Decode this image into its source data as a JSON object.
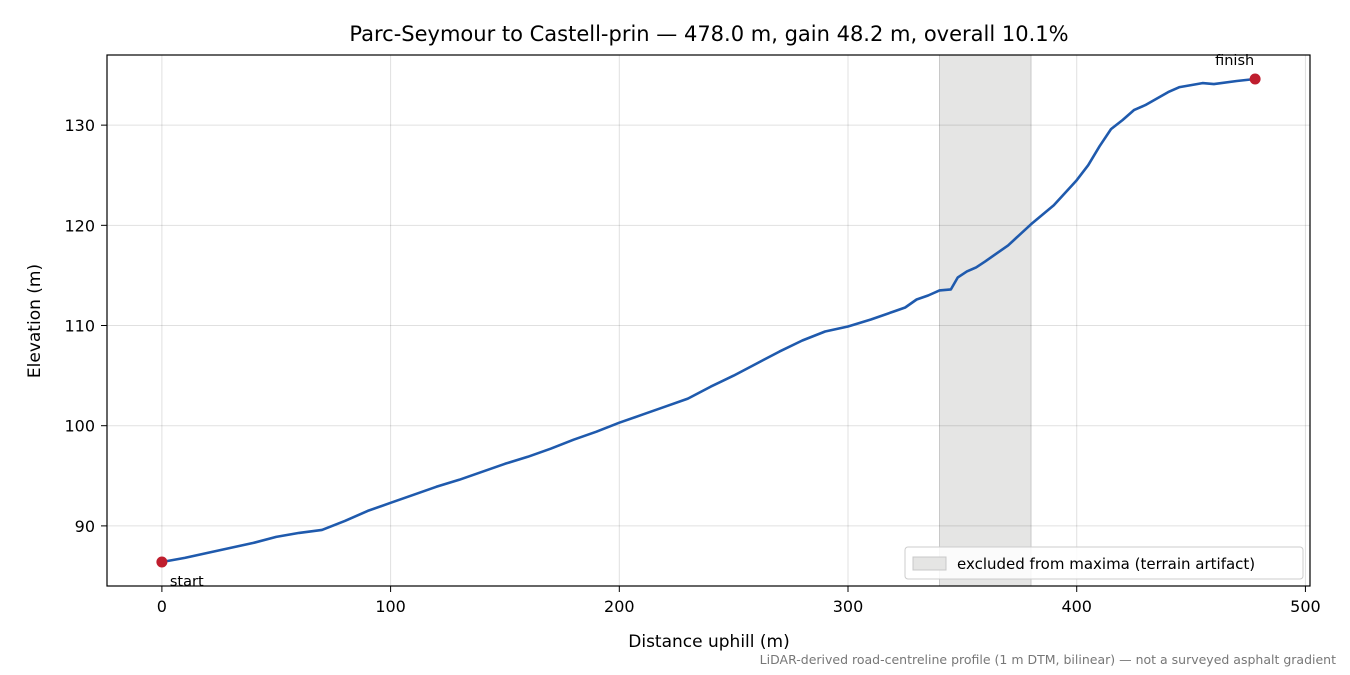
{
  "chart_data": {
    "type": "line",
    "title": "Parc-Seymour to Castell-prin — 478.0 m, gain 48.2 m, overall 10.1%",
    "xlabel": "Distance uphill (m)",
    "ylabel": "Elevation (m)",
    "xlim": [
      -24,
      502
    ],
    "ylim": [
      84,
      137
    ],
    "x_ticks": [
      0,
      100,
      200,
      300,
      400,
      500
    ],
    "y_ticks": [
      90,
      100,
      110,
      120,
      130
    ],
    "grid": true,
    "legend_placement": "lower-right",
    "excluded_region": {
      "x": [
        340,
        380
      ],
      "label": "excluded from maxima (terrain artifact)",
      "color": "#e5e5e4"
    },
    "series": [
      {
        "color": "#1f5aad",
        "x": [
          0,
          10,
          20,
          30,
          40,
          50,
          60,
          70,
          80,
          90,
          100,
          110,
          120,
          130,
          140,
          150,
          160,
          170,
          180,
          190,
          200,
          210,
          220,
          230,
          240,
          250,
          260,
          270,
          280,
          290,
          300,
          310,
          320,
          325,
          330,
          335,
          340,
          345,
          348,
          352,
          356,
          360,
          370,
          380,
          390,
          400,
          405,
          410,
          415,
          420,
          425,
          430,
          440,
          445,
          450,
          455,
          460,
          470,
          478
        ],
        "y": [
          86.4,
          86.8,
          87.3,
          87.8,
          88.3,
          88.9,
          89.3,
          89.6,
          90.5,
          91.5,
          92.3,
          93.1,
          93.9,
          94.6,
          95.4,
          96.2,
          96.9,
          97.7,
          98.6,
          99.4,
          100.3,
          101.1,
          101.9,
          102.7,
          103.9,
          105.0,
          106.2,
          107.4,
          108.5,
          109.4,
          109.9,
          110.6,
          111.4,
          111.8,
          112.6,
          113.0,
          113.5,
          113.6,
          114.8,
          115.4,
          115.8,
          116.4,
          118.0,
          120.1,
          122.0,
          124.5,
          126.0,
          127.9,
          129.6,
          130.5,
          131.5,
          132.0,
          133.3,
          133.8,
          134.0,
          134.2,
          134.1,
          134.4,
          134.6
        ]
      }
    ],
    "markers": [
      {
        "label": "start",
        "x": 0,
        "y": 86.4,
        "color": "#bf1e2e"
      },
      {
        "label": "finish",
        "x": 478,
        "y": 134.6,
        "color": "#bf1e2e"
      }
    ]
  },
  "footer_note": "LiDAR-derived road-centreline profile (1 m DTM, bilinear) — not a surveyed asphalt gradient"
}
